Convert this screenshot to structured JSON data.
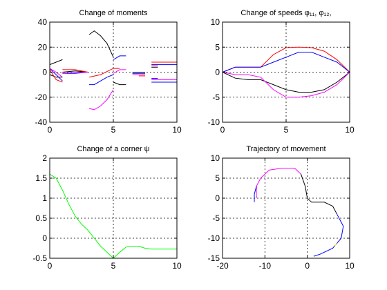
{
  "chart_data": [
    {
      "type": "line",
      "title": "Change of moments",
      "xlim": [
        0,
        10
      ],
      "ylim": [
        -40,
        40
      ],
      "xticks": [
        "0",
        "5",
        "10"
      ],
      "yticks": [
        "-40",
        "-20",
        "0",
        "20",
        "40"
      ],
      "grid": true,
      "series": [
        {
          "color": "#000000",
          "segments": [
            [
              [
                0,
                6
              ],
              [
                0.5,
                8
              ],
              [
                1,
                10
              ]
            ],
            [
              [
                3.1,
                30
              ],
              [
                3.5,
                33
              ],
              [
                4,
                29
              ],
              [
                4.5,
                23
              ],
              [
                5,
                12
              ]
            ],
            [
              [
                5,
                -8
              ],
              [
                5.5,
                -10
              ],
              [
                6,
                -10
              ]
            ],
            [
              [
                0,
                -2
              ],
              [
                0.5,
                -4
              ],
              [
                1,
                -4
              ]
            ],
            [
              [
                1,
                0
              ],
              [
                2,
                1
              ],
              [
                3,
                0
              ]
            ],
            [
              [
                6.5,
                0
              ],
              [
                7,
                0
              ],
              [
                7.5,
                0
              ]
            ],
            [
              [
                8,
                4
              ],
              [
                8.5,
                4
              ]
            ]
          ]
        },
        {
          "color": "#0000ff",
          "segments": [
            [
              [
                0,
                3
              ],
              [
                0.5,
                -2
              ],
              [
                1,
                -7
              ]
            ],
            [
              [
                3.1,
                -10
              ],
              [
                3.5,
                -10
              ],
              [
                4,
                -7
              ],
              [
                4.5,
                -4
              ],
              [
                5,
                -2
              ]
            ],
            [
              [
                5,
                10
              ],
              [
                5.5,
                13
              ],
              [
                6,
                13
              ]
            ],
            [
              [
                1,
                -1
              ],
              [
                2,
                -1
              ],
              [
                3,
                0
              ]
            ],
            [
              [
                6.5,
                -1
              ],
              [
                7,
                -1
              ],
              [
                7.5,
                -1
              ]
            ],
            [
              [
                8,
                -5
              ],
              [
                8.5,
                -5
              ]
            ],
            [
              [
                8,
                -8
              ],
              [
                10,
                -8
              ]
            ],
            [
              [
                8,
                6
              ],
              [
                10,
                6
              ]
            ]
          ]
        },
        {
          "color": "#ff0000",
          "segments": [
            [
              [
                0,
                2
              ],
              [
                0.5,
                -6
              ],
              [
                1,
                -8
              ]
            ],
            [
              [
                1,
                2
              ],
              [
                2,
                2
              ],
              [
                3,
                0
              ]
            ],
            [
              [
                3.1,
                -4
              ],
              [
                4,
                -2
              ],
              [
                5,
                3
              ],
              [
                5.5,
                3
              ]
            ],
            [
              [
                7,
                -3
              ],
              [
                7.5,
                -3
              ]
            ],
            [
              [
                8,
                8
              ],
              [
                10,
                8
              ]
            ],
            [
              [
                8,
                5
              ],
              [
                8.5,
                5
              ]
            ]
          ]
        },
        {
          "color": "#ff00ff",
          "segments": [
            [
              [
                0,
                3
              ],
              [
                0.5,
                0
              ],
              [
                1,
                -4
              ]
            ],
            [
              [
                1,
                -1
              ],
              [
                2,
                0
              ],
              [
                3,
                0
              ]
            ],
            [
              [
                3.1,
                -29
              ],
              [
                3.5,
                -30
              ],
              [
                4,
                -27
              ],
              [
                4.5,
                -22
              ],
              [
                5,
                -14
              ]
            ],
            [
              [
                5,
                -1
              ],
              [
                5.5,
                2
              ],
              [
                6,
                2
              ]
            ],
            [
              [
                6.5,
                -2
              ],
              [
                7,
                -2
              ],
              [
                7.5,
                -2
              ]
            ],
            [
              [
                8,
                -6
              ],
              [
                10,
                -6
              ]
            ]
          ]
        }
      ]
    },
    {
      "type": "line",
      "title": "Change of speeds  φ₁₁, φ₁₂,",
      "xlim": [
        0,
        10
      ],
      "ylim": [
        -10,
        10
      ],
      "xticks": [
        "0",
        "5",
        "10"
      ],
      "yticks": [
        "-10",
        "-5",
        "0",
        "5",
        "10"
      ],
      "grid": true,
      "series": [
        {
          "color": "#ff0000",
          "segments": [
            [
              [
                0,
                0
              ],
              [
                1,
                1
              ],
              [
                2,
                1
              ],
              [
                3,
                1
              ],
              [
                4,
                3.5
              ],
              [
                5,
                4.9
              ],
              [
                6,
                5
              ],
              [
                7,
                4.9
              ],
              [
                8,
                4.2
              ],
              [
                9,
                2.5
              ],
              [
                10,
                0
              ]
            ]
          ]
        },
        {
          "color": "#0000ff",
          "segments": [
            [
              [
                0,
                0
              ],
              [
                1,
                1
              ],
              [
                2,
                1
              ],
              [
                3,
                1
              ],
              [
                4,
                2
              ],
              [
                5,
                3
              ],
              [
                6,
                4
              ],
              [
                7,
                4
              ],
              [
                8,
                3
              ],
              [
                9,
                2
              ],
              [
                10,
                0
              ]
            ]
          ]
        },
        {
          "color": "#000000",
          "segments": [
            [
              [
                0,
                0
              ],
              [
                1,
                -1.2
              ],
              [
                2,
                -1.5
              ],
              [
                3,
                -1.5
              ],
              [
                4,
                -2.5
              ],
              [
                5,
                -3.5
              ],
              [
                6,
                -4
              ],
              [
                7,
                -4
              ],
              [
                8,
                -3.5
              ],
              [
                9,
                -2
              ],
              [
                10,
                0
              ]
            ]
          ]
        },
        {
          "color": "#ff00ff",
          "segments": [
            [
              [
                0,
                0
              ],
              [
                1,
                -0.5
              ],
              [
                2,
                -0.5
              ],
              [
                3,
                -1
              ],
              [
                4,
                -3.5
              ],
              [
                5,
                -5
              ],
              [
                6,
                -5
              ],
              [
                7,
                -4.7
              ],
              [
                8,
                -4
              ],
              [
                9,
                -2.5
              ],
              [
                10,
                0
              ]
            ]
          ]
        }
      ]
    },
    {
      "type": "line",
      "title": "Change of a corner  ψ",
      "xlim": [
        0,
        10
      ],
      "ylim": [
        -0.5,
        2
      ],
      "xticks": [
        "0",
        "5",
        "10"
      ],
      "yticks": [
        "-0.5",
        "0",
        "0.5",
        "1",
        "1.5",
        "2"
      ],
      "grid": true,
      "series": [
        {
          "color": "#00ff00",
          "segments": [
            [
              [
                0,
                1.6
              ],
              [
                0.5,
                1.5
              ],
              [
                1,
                1.2
              ],
              [
                1.5,
                0.85
              ],
              [
                2,
                0.55
              ],
              [
                2.5,
                0.35
              ],
              [
                3,
                0.2
              ],
              [
                3.5,
                0
              ],
              [
                4,
                -0.2
              ],
              [
                4.5,
                -0.35
              ],
              [
                5,
                -0.5
              ],
              [
                5.5,
                -0.35
              ],
              [
                6,
                -0.22
              ],
              [
                6.5,
                -0.2
              ],
              [
                7,
                -0.2
              ],
              [
                7.5,
                -0.25
              ],
              [
                8,
                -0.27
              ],
              [
                10,
                -0.27
              ]
            ]
          ]
        }
      ]
    },
    {
      "type": "line",
      "title": "Trajectory of movement",
      "xlim": [
        -20,
        10
      ],
      "ylim": [
        -15,
        10
      ],
      "xticks": [
        "-20",
        "-10",
        "0",
        "10"
      ],
      "yticks": [
        "-15",
        "-10",
        "-5",
        "0",
        "5",
        "10"
      ],
      "grid": true,
      "series": [
        {
          "color": "#ff00ff",
          "segments": [
            [
              [
                -12,
                0
              ],
              [
                -12,
                3
              ],
              [
                -11,
                5
              ],
              [
                -9,
                7
              ],
              [
                -6,
                7.5
              ],
              [
                -3,
                7.5
              ],
              [
                -1.5,
                6
              ]
            ]
          ]
        },
        {
          "color": "#0000ff",
          "segments": [
            [
              [
                -12.5,
                -1
              ],
              [
                -12.5,
                1
              ],
              [
                -12,
                3
              ]
            ]
          ]
        },
        {
          "color": "#000000",
          "segments": [
            [
              [
                -1.5,
                6
              ],
              [
                -0.5,
                3
              ],
              [
                0,
                0
              ],
              [
                1,
                -1
              ],
              [
                4,
                -1
              ],
              [
                6,
                -2
              ],
              [
                7,
                -4
              ]
            ]
          ]
        },
        {
          "color": "#0000ff",
          "segments": [
            [
              [
                7,
                -4
              ],
              [
                8.5,
                -7
              ],
              [
                8,
                -10
              ],
              [
                6,
                -12.5
              ],
              [
                3,
                -14
              ],
              [
                1.5,
                -14.5
              ]
            ]
          ]
        },
        {
          "color": "#ffff00",
          "segments": [
            [
              [
                7,
                -11
              ],
              [
                6.5,
                -12
              ]
            ]
          ]
        }
      ]
    }
  ]
}
